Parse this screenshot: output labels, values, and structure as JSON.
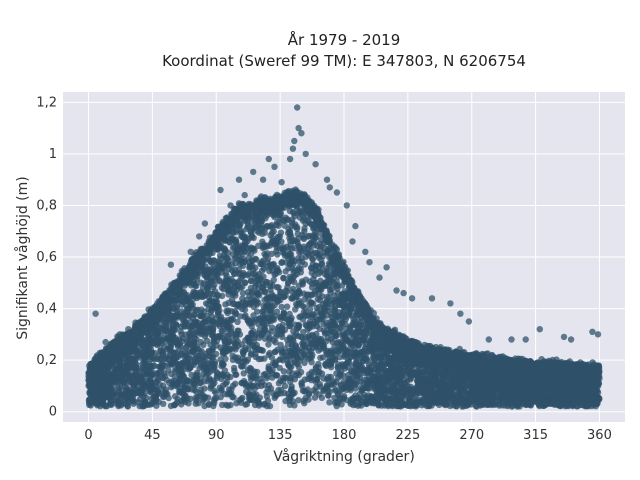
{
  "chart_data": {
    "type": "scatter",
    "title_lines": [
      "År 1979 - 2019",
      "Koordinat (Sweref 99 TM): E 347803, N 6206754"
    ],
    "xlabel": "Vågriktning (grader)",
    "ylabel": "Signifikant våghöjd (m)",
    "xlim": [
      -18,
      378
    ],
    "ylim": [
      -0.04,
      1.24
    ],
    "x_ticks": [
      0,
      45,
      90,
      135,
      180,
      225,
      270,
      315,
      360
    ],
    "x_tick_labels": [
      "0",
      "45",
      "90",
      "135",
      "180",
      "225",
      "270",
      "315",
      "360"
    ],
    "y_ticks": [
      0,
      0.2,
      0.4,
      0.6,
      0.8,
      1.0,
      1.2
    ],
    "y_tick_labels": [
      "0",
      "0,2",
      "0,4",
      "0,6",
      "0,8",
      "1",
      "1,2"
    ],
    "grid": true,
    "background_color": "#e5e5ef",
    "marker_color": "#2f5169",
    "series": [
      {
        "envelope": [
          {
            "x": 0,
            "upper": 0.18
          },
          {
            "x": 15,
            "upper": 0.26
          },
          {
            "x": 30,
            "upper": 0.32
          },
          {
            "x": 45,
            "upper": 0.4
          },
          {
            "x": 60,
            "upper": 0.5
          },
          {
            "x": 75,
            "upper": 0.6
          },
          {
            "x": 90,
            "upper": 0.7
          },
          {
            "x": 105,
            "upper": 0.8
          },
          {
            "x": 120,
            "upper": 0.82
          },
          {
            "x": 135,
            "upper": 0.84
          },
          {
            "x": 150,
            "upper": 0.86
          },
          {
            "x": 160,
            "upper": 0.8
          },
          {
            "x": 175,
            "upper": 0.62
          },
          {
            "x": 190,
            "upper": 0.46
          },
          {
            "x": 205,
            "upper": 0.34
          },
          {
            "x": 225,
            "upper": 0.28
          },
          {
            "x": 250,
            "upper": 0.24
          },
          {
            "x": 275,
            "upper": 0.22
          },
          {
            "x": 300,
            "upper": 0.2
          },
          {
            "x": 330,
            "upper": 0.19
          },
          {
            "x": 360,
            "upper": 0.18
          }
        ],
        "lower": 0.02,
        "outliers": [
          [
            147,
            1.18
          ],
          [
            148,
            1.1
          ],
          [
            150,
            1.08
          ],
          [
            145,
            1.05
          ],
          [
            144,
            1.02
          ],
          [
            153,
            1.0
          ],
          [
            142,
            0.98
          ],
          [
            127,
            0.98
          ],
          [
            131,
            0.95
          ],
          [
            160,
            0.96
          ],
          [
            116,
            0.93
          ],
          [
            123,
            0.9
          ],
          [
            106,
            0.9
          ],
          [
            93,
            0.86
          ],
          [
            100,
            0.8
          ],
          [
            168,
            0.9
          ],
          [
            175,
            0.85
          ],
          [
            182,
            0.8
          ],
          [
            188,
            0.72
          ],
          [
            186,
            0.66
          ],
          [
            195,
            0.62
          ],
          [
            198,
            0.58
          ],
          [
            205,
            0.52
          ],
          [
            210,
            0.56
          ],
          [
            217,
            0.47
          ],
          [
            222,
            0.46
          ],
          [
            228,
            0.44
          ],
          [
            242,
            0.44
          ],
          [
            255,
            0.42
          ],
          [
            262,
            0.38
          ],
          [
            268,
            0.35
          ],
          [
            282,
            0.28
          ],
          [
            298,
            0.28
          ],
          [
            308,
            0.28
          ],
          [
            318,
            0.32
          ],
          [
            335,
            0.29
          ],
          [
            340,
            0.28
          ],
          [
            355,
            0.31
          ],
          [
            359,
            0.3
          ],
          [
            5,
            0.38
          ],
          [
            12,
            0.27
          ],
          [
            22,
            0.3
          ],
          [
            28,
            0.32
          ],
          [
            35,
            0.34
          ],
          [
            52,
            0.4
          ],
          [
            58,
            0.57
          ],
          [
            66,
            0.51
          ],
          [
            72,
            0.62
          ],
          [
            78,
            0.68
          ],
          [
            82,
            0.73
          ],
          [
            88,
            0.66
          ],
          [
            110,
            0.84
          ],
          [
            136,
            0.89
          ],
          [
            170,
            0.87
          ]
        ]
      }
    ]
  }
}
